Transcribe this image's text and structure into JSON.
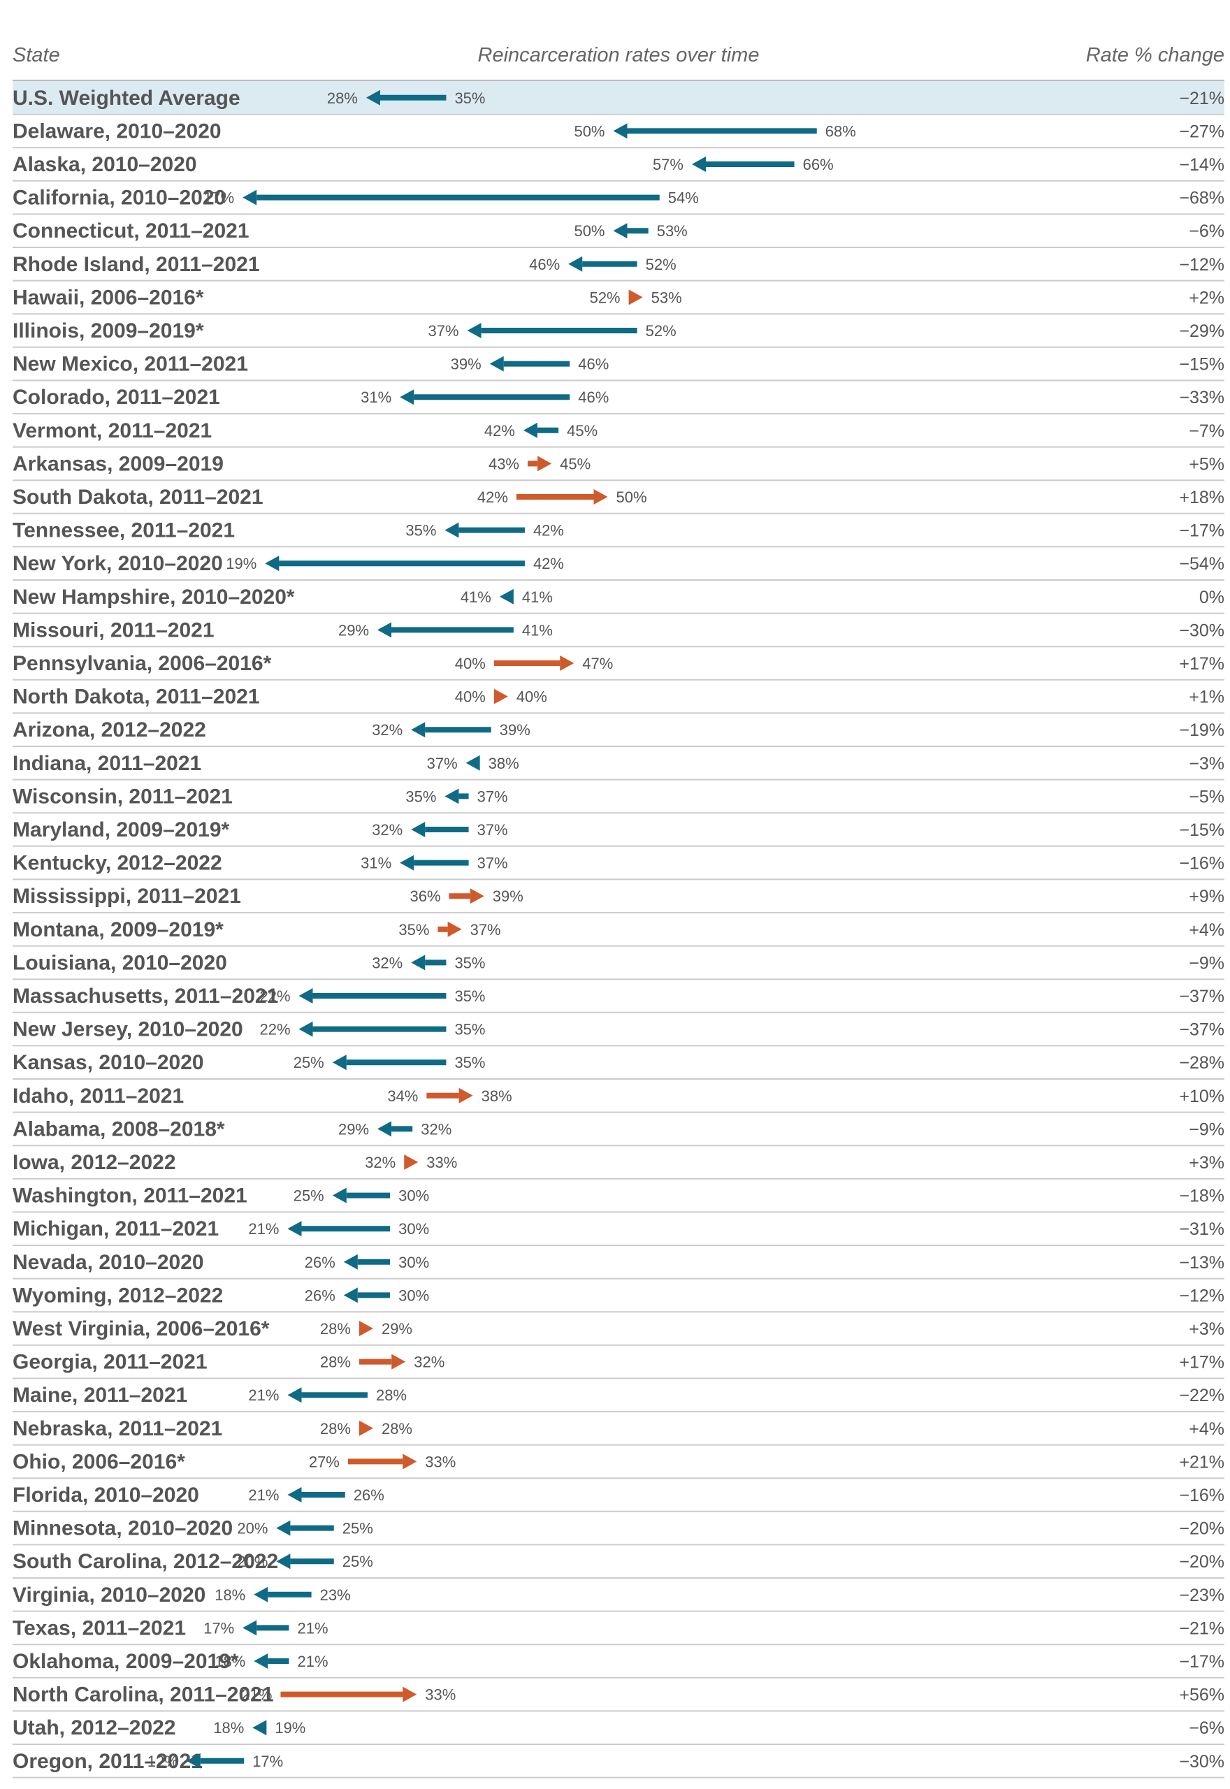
{
  "header": {
    "state": "State",
    "middle": "Reincarceration rates over time",
    "change": "Rate % change"
  },
  "colors": {
    "decrease": "#0f6a85",
    "increase": "#cf5a2b",
    "highlight": "#dcebf2",
    "text": "#555555",
    "divider": "#cccccc"
  },
  "chart_data": {
    "type": "dumbbell-arrow",
    "xlim": [
      0,
      100
    ],
    "grid": false,
    "rows": [
      {
        "label": "U.S. Weighted Average",
        "from": 35,
        "to": 28,
        "from_label": "35%",
        "to_label": "28%",
        "change": "−21%",
        "highlight": true
      },
      {
        "label": "Delaware, 2010–2020",
        "from": 68,
        "to": 50,
        "from_label": "68%",
        "to_label": "50%",
        "change": "−27%"
      },
      {
        "label": "Alaska, 2010–2020",
        "from": 66,
        "to": 57,
        "from_label": "66%",
        "to_label": "57%",
        "change": "−14%"
      },
      {
        "label": "California, 2010–2020",
        "from": 54,
        "to": 17,
        "from_label": "54%",
        "to_label": "17%",
        "change": "−68%"
      },
      {
        "label": "Connecticut, 2011–2021",
        "from": 53,
        "to": 50,
        "from_label": "53%",
        "to_label": "50%",
        "change": "−6%"
      },
      {
        "label": "Rhode Island, 2011–2021",
        "from": 52,
        "to": 46,
        "from_label": "52%",
        "to_label": "46%",
        "change": "−12%"
      },
      {
        "label": "Hawaii, 2006–2016*",
        "from": 52,
        "to": 53,
        "from_label": "52%",
        "to_label": "53%",
        "change": "+2%"
      },
      {
        "label": "Illinois, 2009–2019*",
        "from": 52,
        "to": 37,
        "from_label": "52%",
        "to_label": "37%",
        "change": "−29%"
      },
      {
        "label": "New Mexico, 2011–2021",
        "from": 46,
        "to": 39,
        "from_label": "46%",
        "to_label": "39%",
        "change": "−15%"
      },
      {
        "label": "Colorado, 2011–2021",
        "from": 46,
        "to": 31,
        "from_label": "46%",
        "to_label": "31%",
        "change": "−33%"
      },
      {
        "label": "Vermont, 2011–2021",
        "from": 45,
        "to": 42,
        "from_label": "45%",
        "to_label": "42%",
        "change": "−7%"
      },
      {
        "label": "Arkansas, 2009–2019",
        "from": 43,
        "to": 45,
        "from_label": "43%",
        "to_label": "45%",
        "change": "+5%"
      },
      {
        "label": "South Dakota, 2011–2021",
        "from": 42,
        "to": 50,
        "from_label": "42%",
        "to_label": "50%",
        "change": "+18%"
      },
      {
        "label": "Tennessee, 2011–2021",
        "from": 42,
        "to": 35,
        "from_label": "42%",
        "to_label": "35%",
        "change": "−17%"
      },
      {
        "label": "New York, 2010–2020",
        "from": 42,
        "to": 19,
        "from_label": "42%",
        "to_label": "19%",
        "change": "−54%"
      },
      {
        "label": "New Hampshire, 2010–2020*",
        "from": 41,
        "to": 41,
        "from_label": "41%",
        "to_label": "41%",
        "change": "0%",
        "direction": "decrease"
      },
      {
        "label": "Missouri, 2011–2021",
        "from": 41,
        "to": 29,
        "from_label": "41%",
        "to_label": "29%",
        "change": "−30%"
      },
      {
        "label": "Pennsylvania, 2006–2016*",
        "from": 40,
        "to": 47,
        "from_label": "40%",
        "to_label": "47%",
        "change": "+17%"
      },
      {
        "label": "North Dakota, 2011–2021",
        "from": 40,
        "to": 40,
        "from_label": "40%",
        "to_label": "40%",
        "change": "+1%",
        "direction": "increase"
      },
      {
        "label": "Arizona, 2012–2022",
        "from": 39,
        "to": 32,
        "from_label": "39%",
        "to_label": "32%",
        "change": "−19%"
      },
      {
        "label": "Indiana, 2011–2021",
        "from": 38,
        "to": 37,
        "from_label": "38%",
        "to_label": "37%",
        "change": "−3%"
      },
      {
        "label": "Wisconsin, 2011–2021",
        "from": 37,
        "to": 35,
        "from_label": "37%",
        "to_label": "35%",
        "change": "−5%"
      },
      {
        "label": "Maryland, 2009–2019*",
        "from": 37,
        "to": 32,
        "from_label": "37%",
        "to_label": "32%",
        "change": "−15%"
      },
      {
        "label": "Kentucky, 2012–2022",
        "from": 37,
        "to": 31,
        "from_label": "37%",
        "to_label": "31%",
        "change": "−16%"
      },
      {
        "label": "Mississippi, 2011–2021",
        "from": 36,
        "to": 39,
        "from_label": "36%",
        "to_label": "39%",
        "change": "+9%"
      },
      {
        "label": "Montana, 2009–2019*",
        "from": 35,
        "to": 37,
        "from_label": "35%",
        "to_label": "37%",
        "change": "+4%"
      },
      {
        "label": "Louisiana, 2010–2020",
        "from": 35,
        "to": 32,
        "from_label": "35%",
        "to_label": "32%",
        "change": "−9%"
      },
      {
        "label": "Massachusetts, 2011–2021",
        "from": 35,
        "to": 22,
        "from_label": "35%",
        "to_label": "22%",
        "change": "−37%"
      },
      {
        "label": "New Jersey, 2010–2020",
        "from": 35,
        "to": 22,
        "from_label": "35%",
        "to_label": "22%",
        "change": "−37%"
      },
      {
        "label": "Kansas, 2010–2020",
        "from": 35,
        "to": 25,
        "from_label": "35%",
        "to_label": "25%",
        "change": "−28%"
      },
      {
        "label": "Idaho, 2011–2021",
        "from": 34,
        "to": 38,
        "from_label": "34%",
        "to_label": "38%",
        "change": "+10%"
      },
      {
        "label": "Alabama, 2008–2018*",
        "from": 32,
        "to": 29,
        "from_label": "32%",
        "to_label": "29%",
        "change": "−9%"
      },
      {
        "label": "Iowa, 2012–2022",
        "from": 32,
        "to": 33,
        "from_label": "32%",
        "to_label": "33%",
        "change": "+3%"
      },
      {
        "label": "Washington, 2011–2021",
        "from": 30,
        "to": 25,
        "from_label": "30%",
        "to_label": "25%",
        "change": "−18%"
      },
      {
        "label": "Michigan, 2011–2021",
        "from": 30,
        "to": 21,
        "from_label": "30%",
        "to_label": "21%",
        "change": "−31%"
      },
      {
        "label": "Nevada, 2010–2020",
        "from": 30,
        "to": 26,
        "from_label": "30%",
        "to_label": "26%",
        "change": "−13%"
      },
      {
        "label": "Wyoming, 2012–2022",
        "from": 30,
        "to": 26,
        "from_label": "30%",
        "to_label": "26%",
        "change": "−12%"
      },
      {
        "label": "West Virginia, 2006–2016*",
        "from": 28,
        "to": 29,
        "from_label": "28%",
        "to_label": "29%",
        "change": "+3%"
      },
      {
        "label": "Georgia, 2011–2021",
        "from": 28,
        "to": 32,
        "from_label": "28%",
        "to_label": "32%",
        "change": "+17%"
      },
      {
        "label": "Maine, 2011–2021",
        "from": 28,
        "to": 21,
        "from_label": "28%",
        "to_label": "21%",
        "change": "−22%"
      },
      {
        "label": "Nebraska, 2011–2021",
        "from": 28,
        "to": 28,
        "from_label": "28%",
        "to_label": "28%",
        "change": "+4%",
        "direction": "increase"
      },
      {
        "label": "Ohio, 2006–2016*",
        "from": 27,
        "to": 33,
        "from_label": "27%",
        "to_label": "33%",
        "change": "+21%"
      },
      {
        "label": "Florida, 2010–2020",
        "from": 26,
        "to": 21,
        "from_label": "26%",
        "to_label": "21%",
        "change": "−16%"
      },
      {
        "label": "Minnesota, 2010–2020",
        "from": 25,
        "to": 20,
        "from_label": "25%",
        "to_label": "20%",
        "change": "−20%"
      },
      {
        "label": "South Carolina, 2012–2022",
        "from": 25,
        "to": 20,
        "from_label": "25%",
        "to_label": "20%",
        "change": "−20%"
      },
      {
        "label": "Virginia, 2010–2020",
        "from": 23,
        "to": 18,
        "from_label": "23%",
        "to_label": "18%",
        "change": "−23%"
      },
      {
        "label": "Texas, 2011–2021",
        "from": 21,
        "to": 17,
        "from_label": "21%",
        "to_label": "17%",
        "change": "−21%"
      },
      {
        "label": "Oklahoma, 2009–2019*",
        "from": 21,
        "to": 18,
        "from_label": "21%",
        "to_label": "18%",
        "change": "−17%"
      },
      {
        "label": "North Carolina, 2011–2021",
        "from": 21,
        "to": 33,
        "from_label": "21%",
        "to_label": "33%",
        "change": "+56%"
      },
      {
        "label": "Utah, 2012–2022",
        "from": 19,
        "to": 18,
        "from_label": "19%",
        "to_label": "18%",
        "change": "−6%"
      },
      {
        "label": "Oregon, 2011–2021",
        "from": 17,
        "to": 12,
        "from_label": "17%",
        "to_label": "12%",
        "change": "−30%"
      }
    ]
  }
}
